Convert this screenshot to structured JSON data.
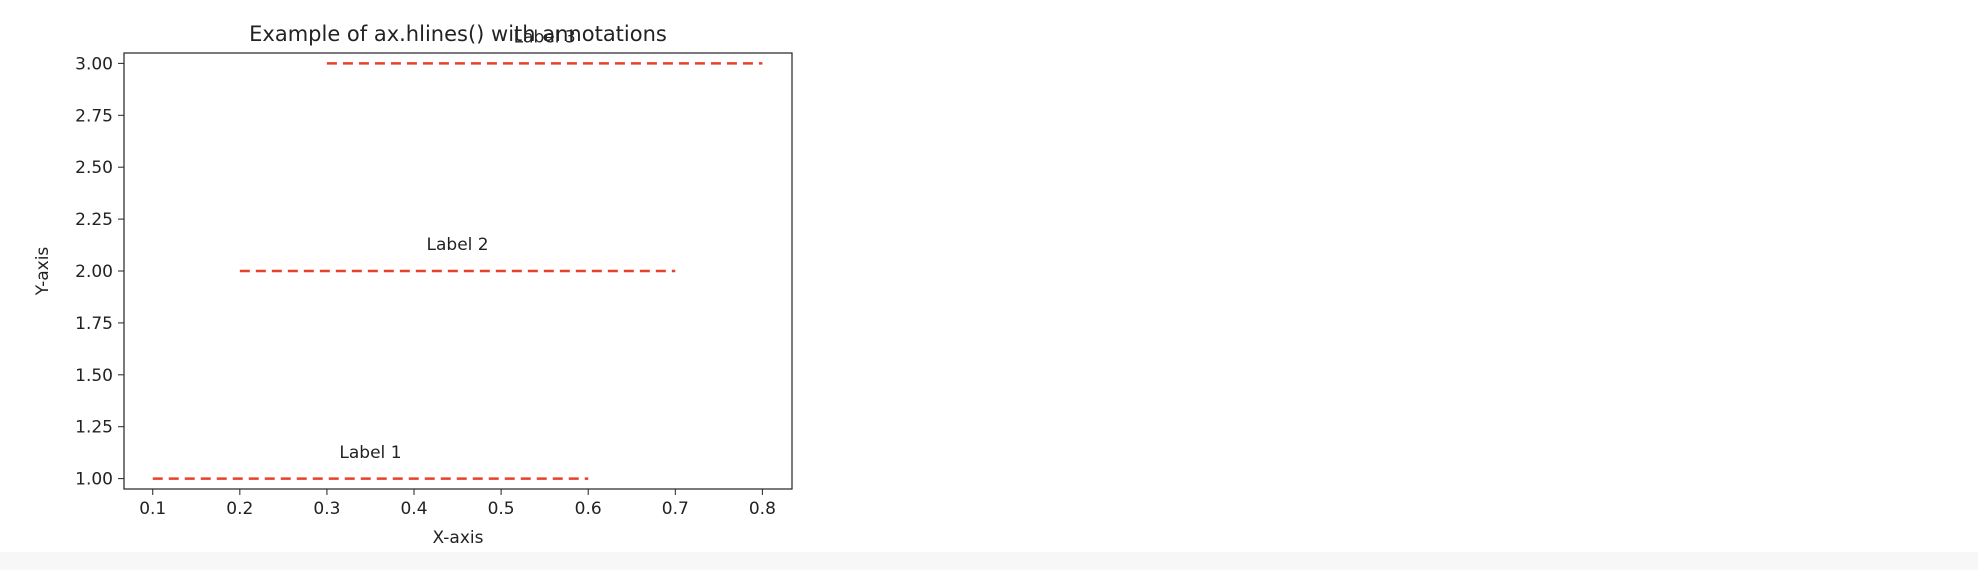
{
  "chart_data": {
    "type": "line",
    "title": "Example of ax.hlines() with annotations",
    "xlabel": "X-axis",
    "ylabel": "Y-axis",
    "xlim": [
      0.067,
      0.834
    ],
    "ylim": [
      0.95,
      3.05
    ],
    "xticks": [
      0.1,
      0.2,
      0.3,
      0.4,
      0.5,
      0.6,
      0.7,
      0.8
    ],
    "xtick_labels": [
      "0.1",
      "0.2",
      "0.3",
      "0.4",
      "0.5",
      "0.6",
      "0.7",
      "0.8"
    ],
    "yticks": [
      1.0,
      1.25,
      1.5,
      1.75,
      2.0,
      2.25,
      2.5,
      2.75,
      3.0
    ],
    "ytick_labels": [
      "1.00",
      "1.25",
      "1.50",
      "1.75",
      "2.00",
      "2.25",
      "2.50",
      "2.75",
      "3.00"
    ],
    "grid": false,
    "line_color": "#e8402a",
    "line_style": "dashed",
    "lines": [
      {
        "y": 1,
        "xmin": 0.1,
        "xmax": 0.6
      },
      {
        "y": 2,
        "xmin": 0.2,
        "xmax": 0.7
      },
      {
        "y": 3,
        "xmin": 0.3,
        "xmax": 0.8
      }
    ],
    "annotations": [
      {
        "text": "Label 1",
        "x": 0.35,
        "y": 1.1
      },
      {
        "text": "Label 2",
        "x": 0.45,
        "y": 2.1
      },
      {
        "text": "Label 3",
        "x": 0.55,
        "y": 3.1
      }
    ]
  }
}
